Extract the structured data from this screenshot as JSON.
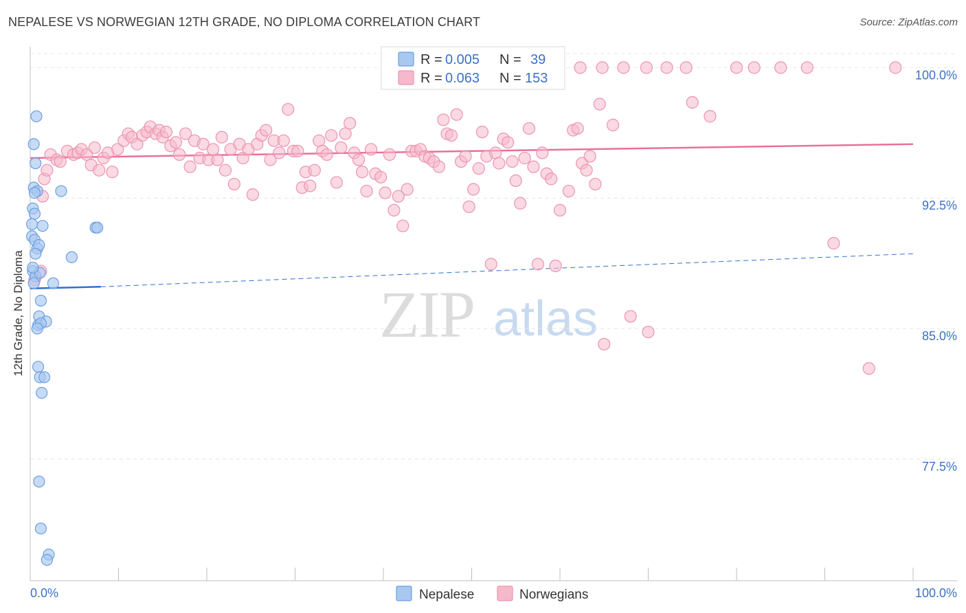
{
  "title": "NEPALESE VS NORWEGIAN 12TH GRADE, NO DIPLOMA CORRELATION CHART",
  "source": "Source: ZipAtlas.com",
  "watermark": {
    "zip": "ZIP",
    "atlas": "atlas"
  },
  "legend_top": {
    "rows": [
      {
        "r_label": "R =",
        "r_value": "0.005",
        "n_label": "N =",
        "n_value": "39"
      },
      {
        "r_label": "R =",
        "r_value": "0.063",
        "n_label": "N =",
        "n_value": "153"
      }
    ]
  },
  "legend_bottom": [
    "Nepalese",
    "Norwegians"
  ],
  "colors": {
    "nepalese_fill": "#a9c8f0",
    "nepalese_stroke": "#6a9fe0",
    "nepalese_line": "#2f6fd0",
    "norwegian_fill": "#f6b9cc",
    "norwegian_stroke": "#ec93b0",
    "norwegian_line": "#e8709a",
    "tick_text": "#3a72c4",
    "grid": "#e4e4e4"
  },
  "chart_data": {
    "type": "scatter",
    "title": "NEPALESE VS NORWEGIAN 12TH GRADE, NO DIPLOMA CORRELATION CHART",
    "xlabel": "",
    "ylabel": "12th Grade, No Diploma",
    "xlim": [
      0,
      100
    ],
    "ylim": [
      70.5,
      101.2
    ],
    "x_tick_labels": [
      "0.0%",
      "100.0%"
    ],
    "y_ticks": [
      77.5,
      85.0,
      92.5,
      100.0
    ],
    "y_tick_labels": [
      "77.5%",
      "85.0%",
      "92.5%",
      "100.0%"
    ],
    "series": [
      {
        "name": "Nepalese",
        "R": 0.005,
        "N": 39,
        "trend": {
          "x": [
            0,
            8,
            100
          ],
          "y": [
            87.3,
            87.4,
            89.3
          ],
          "solid_until": 8
        },
        "points": [
          [
            0.7,
            97.2
          ],
          [
            0.4,
            95.6
          ],
          [
            0.6,
            94.5
          ],
          [
            0.4,
            93.1
          ],
          [
            0.8,
            92.9
          ],
          [
            3.5,
            92.9
          ],
          [
            0.3,
            91.9
          ],
          [
            0.5,
            91.6
          ],
          [
            0.2,
            91.0
          ],
          [
            1.4,
            90.9
          ],
          [
            7.4,
            90.8
          ],
          [
            7.6,
            90.8
          ],
          [
            0.2,
            90.3
          ],
          [
            0.5,
            90.1
          ],
          [
            0.8,
            89.6
          ],
          [
            1.0,
            89.8
          ],
          [
            0.6,
            89.3
          ],
          [
            4.7,
            89.1
          ],
          [
            0.3,
            88.3
          ],
          [
            0.6,
            88.0
          ],
          [
            1.1,
            88.2
          ],
          [
            0.4,
            87.6
          ],
          [
            2.6,
            87.6
          ],
          [
            1.2,
            86.6
          ],
          [
            1.0,
            85.7
          ],
          [
            0.9,
            85.2
          ],
          [
            1.8,
            85.4
          ],
          [
            1.2,
            85.3
          ],
          [
            0.8,
            85.0
          ],
          [
            0.9,
            82.8
          ],
          [
            1.1,
            82.2
          ],
          [
            1.6,
            82.2
          ],
          [
            1.3,
            81.3
          ],
          [
            1.0,
            76.2
          ],
          [
            1.2,
            73.5
          ],
          [
            2.1,
            72.0
          ],
          [
            1.9,
            71.7
          ],
          [
            0.5,
            92.8
          ],
          [
            0.3,
            88.5
          ]
        ]
      },
      {
        "name": "Norwegians",
        "R": 0.063,
        "N": 153,
        "trend": {
          "x": [
            0,
            100
          ],
          "y": [
            94.8,
            95.6
          ]
        },
        "points": [
          [
            1.4,
            92.6
          ],
          [
            1.2,
            88.3
          ],
          [
            0.5,
            87.8
          ],
          [
            1.6,
            93.6
          ],
          [
            1.9,
            94.1
          ],
          [
            2.3,
            95.0
          ],
          [
            3.0,
            94.7
          ],
          [
            3.4,
            94.6
          ],
          [
            4.2,
            95.2
          ],
          [
            4.9,
            95.0
          ],
          [
            5.4,
            95.1
          ],
          [
            5.8,
            95.3
          ],
          [
            6.4,
            95.0
          ],
          [
            6.9,
            94.4
          ],
          [
            7.3,
            95.4
          ],
          [
            7.8,
            94.1
          ],
          [
            8.3,
            94.8
          ],
          [
            8.8,
            95.1
          ],
          [
            9.3,
            94.0
          ],
          [
            9.9,
            95.3
          ],
          [
            10.6,
            95.8
          ],
          [
            11.1,
            96.2
          ],
          [
            11.5,
            96.0
          ],
          [
            12.1,
            95.6
          ],
          [
            12.7,
            96.1
          ],
          [
            13.2,
            96.3
          ],
          [
            13.6,
            96.6
          ],
          [
            14.2,
            96.2
          ],
          [
            14.6,
            96.4
          ],
          [
            15.0,
            96.0
          ],
          [
            15.4,
            96.3
          ],
          [
            15.9,
            95.5
          ],
          [
            16.5,
            95.7
          ],
          [
            16.9,
            95.0
          ],
          [
            17.6,
            96.2
          ],
          [
            18.1,
            94.3
          ],
          [
            18.6,
            95.8
          ],
          [
            19.2,
            94.8
          ],
          [
            19.6,
            95.6
          ],
          [
            20.2,
            94.7
          ],
          [
            20.7,
            95.3
          ],
          [
            21.2,
            94.7
          ],
          [
            21.7,
            96.0
          ],
          [
            22.1,
            94.1
          ],
          [
            22.7,
            95.3
          ],
          [
            23.1,
            93.3
          ],
          [
            23.7,
            95.6
          ],
          [
            24.1,
            94.8
          ],
          [
            24.7,
            95.3
          ],
          [
            25.2,
            92.7
          ],
          [
            25.7,
            95.6
          ],
          [
            26.2,
            96.1
          ],
          [
            26.7,
            96.4
          ],
          [
            27.2,
            94.7
          ],
          [
            27.6,
            95.8
          ],
          [
            28.2,
            95.1
          ],
          [
            28.7,
            95.8
          ],
          [
            29.2,
            97.6
          ],
          [
            29.8,
            95.2
          ],
          [
            30.3,
            95.2
          ],
          [
            30.8,
            93.1
          ],
          [
            31.2,
            94.0
          ],
          [
            31.7,
            93.2
          ],
          [
            32.2,
            94.1
          ],
          [
            32.7,
            95.8
          ],
          [
            33.1,
            95.2
          ],
          [
            33.6,
            95.0
          ],
          [
            34.1,
            96.1
          ],
          [
            34.7,
            93.4
          ],
          [
            35.2,
            95.4
          ],
          [
            35.7,
            96.2
          ],
          [
            36.2,
            96.8
          ],
          [
            36.7,
            95.1
          ],
          [
            37.2,
            94.7
          ],
          [
            37.6,
            94.0
          ],
          [
            38.1,
            92.9
          ],
          [
            38.6,
            95.3
          ],
          [
            39.1,
            93.9
          ],
          [
            39.7,
            93.7
          ],
          [
            40.2,
            92.8
          ],
          [
            40.7,
            95.0
          ],
          [
            41.2,
            91.8
          ],
          [
            41.7,
            92.6
          ],
          [
            42.2,
            90.9
          ],
          [
            42.7,
            93.0
          ],
          [
            43.2,
            95.2
          ],
          [
            43.7,
            95.2
          ],
          [
            44.2,
            95.3
          ],
          [
            44.7,
            94.9
          ],
          [
            45.2,
            94.8
          ],
          [
            45.7,
            94.6
          ],
          [
            46.3,
            94.3
          ],
          [
            46.8,
            97.0
          ],
          [
            47.2,
            96.2
          ],
          [
            47.7,
            96.1
          ],
          [
            48.3,
            97.3
          ],
          [
            48.8,
            94.6
          ],
          [
            49.3,
            94.9
          ],
          [
            49.7,
            92.0
          ],
          [
            50.2,
            93.0
          ],
          [
            50.8,
            94.2
          ],
          [
            51.2,
            96.3
          ],
          [
            51.7,
            94.9
          ],
          [
            52.2,
            88.7
          ],
          [
            52.7,
            95.1
          ],
          [
            53.1,
            94.5
          ],
          [
            53.6,
            95.9
          ],
          [
            54.1,
            95.7
          ],
          [
            54.6,
            94.6
          ],
          [
            55.0,
            93.5
          ],
          [
            55.5,
            92.2
          ],
          [
            56.0,
            94.8
          ],
          [
            56.5,
            96.5
          ],
          [
            57.0,
            94.3
          ],
          [
            57.5,
            88.7
          ],
          [
            58.0,
            95.1
          ],
          [
            58.5,
            93.9
          ],
          [
            59.0,
            93.6
          ],
          [
            59.5,
            88.6
          ],
          [
            60.0,
            91.8
          ],
          [
            61.0,
            92.9
          ],
          [
            61.5,
            96.4
          ],
          [
            62.0,
            96.5
          ],
          [
            62.5,
            94.5
          ],
          [
            63.0,
            94.1
          ],
          [
            63.4,
            94.9
          ],
          [
            64.0,
            93.3
          ],
          [
            64.5,
            97.9
          ],
          [
            65.0,
            84.1
          ],
          [
            66.0,
            96.7
          ],
          [
            68.0,
            85.7
          ],
          [
            70.0,
            84.8
          ],
          [
            75.0,
            98.0
          ],
          [
            77.0,
            97.2
          ],
          [
            80.0,
            100.0
          ],
          [
            82.0,
            100.0
          ],
          [
            85.0,
            100.0
          ],
          [
            88.0,
            100.0
          ],
          [
            91.0,
            89.9
          ],
          [
            95.0,
            82.7
          ],
          [
            98.0,
            100.0
          ],
          [
            62.3,
            100.0
          ],
          [
            64.8,
            100.0
          ],
          [
            67.2,
            100.0
          ],
          [
            69.8,
            100.0
          ],
          [
            72.1,
            100.0
          ],
          [
            74.3,
            100.0
          ]
        ]
      }
    ]
  }
}
